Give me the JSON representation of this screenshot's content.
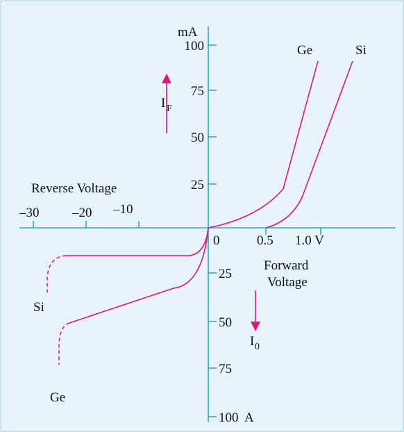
{
  "axis_labels": {
    "y_unit": "mA",
    "reverse": "Reverse Voltage",
    "forward_line1": "Forward",
    "forward_line2": "Voltage",
    "if_main": "I",
    "if_sub": "F",
    "i0_main": "I",
    "i0_sub": "0"
  },
  "forward_current_ticks": [
    "100",
    "75",
    "50",
    "25"
  ],
  "reverse_current_ticks": [
    "25",
    "50",
    "75",
    "100  A"
  ],
  "reverse_voltage_ticks": [
    "–30",
    "–20",
    "–10"
  ],
  "forward_voltage_ticks": [
    "0",
    "0.5",
    "1.0 V"
  ],
  "curve_labels": {
    "ge_forward": "Ge",
    "si_forward": "Si",
    "si_reverse": "Si",
    "ge_reverse": "Ge"
  }
}
